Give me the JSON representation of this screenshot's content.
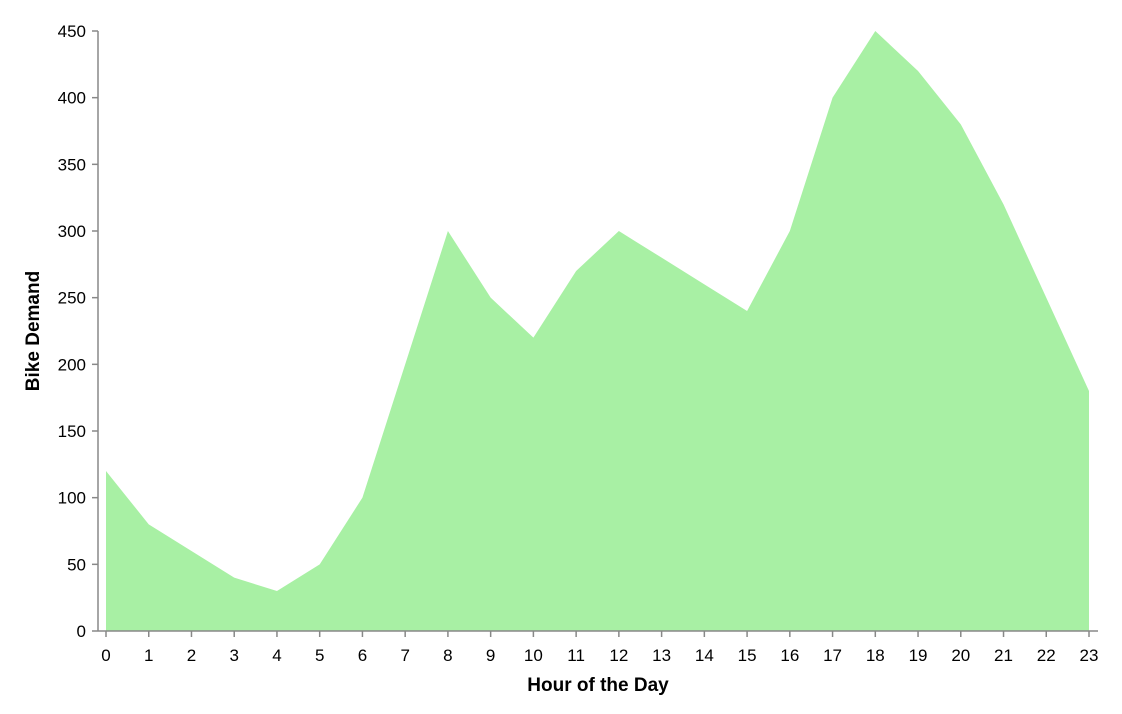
{
  "chart_data": {
    "type": "area",
    "xlabel": "Hour of the Day",
    "ylabel": "Bike Demand",
    "x": [
      0,
      1,
      2,
      3,
      4,
      5,
      6,
      7,
      8,
      9,
      10,
      11,
      12,
      13,
      14,
      15,
      16,
      17,
      18,
      19,
      20,
      21,
      22,
      23
    ],
    "values": [
      120,
      80,
      60,
      40,
      30,
      50,
      100,
      200,
      300,
      250,
      220,
      270,
      300,
      280,
      260,
      240,
      300,
      400,
      450,
      420,
      380,
      320,
      250,
      180
    ],
    "xticks": [
      "0",
      "1",
      "2",
      "3",
      "4",
      "5",
      "6",
      "7",
      "8",
      "9",
      "10",
      "11",
      "12",
      "13",
      "14",
      "15",
      "16",
      "17",
      "18",
      "19",
      "20",
      "21",
      "22",
      "23"
    ],
    "yticks": [
      "0",
      "50",
      "100",
      "150",
      "200",
      "250",
      "300",
      "350",
      "400",
      "450"
    ],
    "ylim": [
      0,
      450
    ],
    "xlim": [
      0,
      23
    ],
    "grid": false,
    "fill_color": "#a8f0a4"
  }
}
